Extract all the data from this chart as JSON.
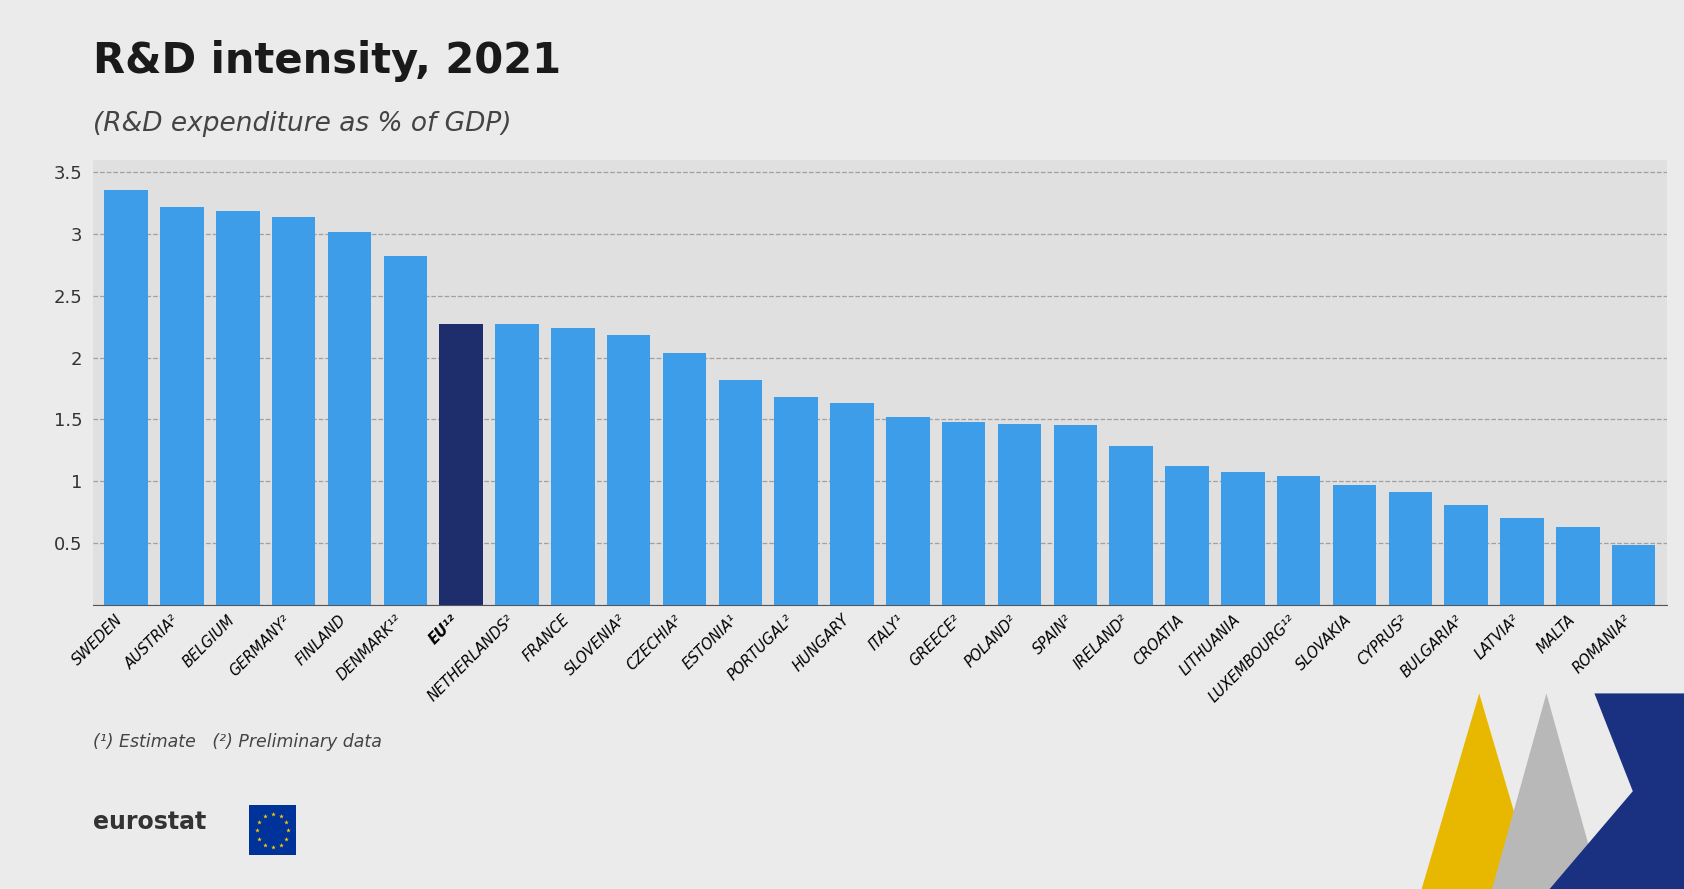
{
  "title": "R&D intensity, 2021",
  "subtitle": "(R&D expenditure as % of GDP)",
  "background_color": "#ebebeb",
  "plot_bg_color": "#e0e0e0",
  "bar_color_default": "#3d9de8",
  "bar_color_eu": "#1e2d6b",
  "categories": [
    "SWEDEN",
    "AUSTRIA²",
    "BELGIUM",
    "GERMANY²",
    "FINLAND",
    "DENMARK¹²",
    "EU¹²",
    "NETHERLANDS²",
    "FRANCE",
    "SLOVENIA²",
    "CZECHIA²",
    "ESTONIA¹",
    "PORTUGAL²",
    "HUNGARY",
    "ITALY¹",
    "GREECE²",
    "POLAND²",
    "SPAIN²",
    "IRELAND²",
    "CROATIA",
    "LITHUANIA",
    "LUXEMBOURG¹²",
    "SLOVAKIA",
    "CYPRUS²",
    "BULGARIA²",
    "LATVIA²",
    "MALTA",
    "ROMANIA²"
  ],
  "values": [
    3.36,
    3.22,
    3.19,
    3.14,
    3.02,
    2.82,
    2.27,
    2.27,
    2.24,
    2.18,
    2.04,
    1.82,
    1.68,
    1.63,
    1.52,
    1.48,
    1.46,
    1.45,
    1.28,
    1.12,
    1.07,
    1.04,
    0.97,
    0.91,
    0.81,
    0.7,
    0.63,
    0.48
  ],
  "eu_index": 6,
  "ylim": [
    0,
    3.6
  ],
  "yticks": [
    0,
    0.5,
    1.0,
    1.5,
    2.0,
    2.5,
    3.0,
    3.5
  ],
  "footnote": "(¹) Estimate   (²) Preliminary data",
  "title_fontsize": 30,
  "subtitle_fontsize": 19,
  "ytick_fontsize": 13,
  "xtick_fontsize": 10.5,
  "footnote_fontsize": 12.5
}
